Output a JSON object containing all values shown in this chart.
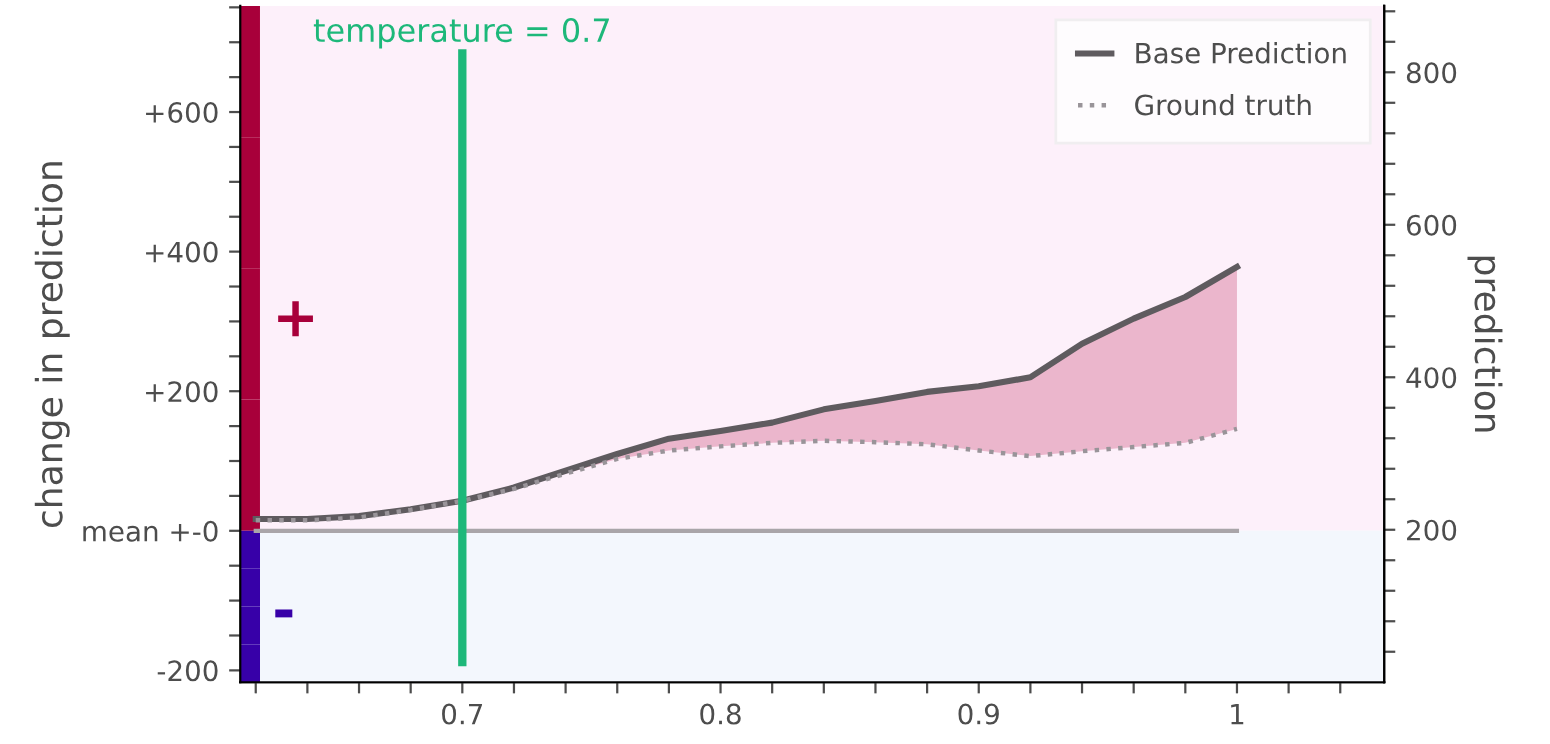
{
  "chart_data": {
    "type": "line",
    "xlabel": null,
    "ylabel": "change in prediction",
    "y2label": "prediction",
    "x": [
      0.62,
      0.64,
      0.66,
      0.68,
      0.7,
      0.72,
      0.74,
      0.76,
      0.78,
      0.8,
      0.82,
      0.84,
      0.86,
      0.88,
      0.9,
      0.92,
      0.94,
      0.96,
      0.98,
      1.0
    ],
    "series": [
      {
        "name": "Base Prediction",
        "color": "#5f5b5f",
        "line_style": "solid",
        "values": [
          17,
          17,
          21,
          31,
          43,
          62,
          86,
          110,
          132,
          143,
          155,
          174,
          186,
          199,
          207,
          220,
          268,
          304,
          335,
          378
        ],
        "lower": [
          15,
          15,
          19,
          30,
          43,
          60,
          82,
          103,
          115,
          121,
          126,
          129,
          127,
          124,
          115,
          107,
          114,
          120,
          126,
          146
        ],
        "upper": [
          17,
          17,
          21,
          31,
          43,
          62,
          86,
          110,
          132,
          143,
          155,
          174,
          186,
          199,
          207,
          220,
          268,
          304,
          335,
          378
        ]
      },
      {
        "name": "Ground truth",
        "color": "#999499",
        "line_style": "dotted",
        "values": [
          15,
          15,
          19,
          30,
          43,
          60,
          82,
          103,
          115,
          121,
          126,
          129,
          127,
          124,
          115,
          107,
          114,
          120,
          126,
          146
        ]
      }
    ],
    "xlim": [
      0.614,
      1.057
    ],
    "xticks": [
      {
        "value": 0.62,
        "label": null
      },
      {
        "value": 0.64,
        "label": null
      },
      {
        "value": 0.66,
        "label": null
      },
      {
        "value": 0.68,
        "label": null
      },
      {
        "value": 0.7,
        "label": "0.7"
      },
      {
        "value": 0.72,
        "label": null
      },
      {
        "value": 0.74,
        "label": null
      },
      {
        "value": 0.76,
        "label": null
      },
      {
        "value": 0.78,
        "label": null
      },
      {
        "value": 0.8,
        "label": "0.8"
      },
      {
        "value": 0.82,
        "label": null
      },
      {
        "value": 0.84,
        "label": null
      },
      {
        "value": 0.86,
        "label": null
      },
      {
        "value": 0.88,
        "label": null
      },
      {
        "value": 0.9,
        "label": "0.9"
      },
      {
        "value": 0.92,
        "label": null
      },
      {
        "value": 0.94,
        "label": null
      },
      {
        "value": 0.96,
        "label": null
      },
      {
        "value": 0.98,
        "label": null
      },
      {
        "value": 1.0,
        "label": "1"
      },
      {
        "value": 1.02,
        "label": null
      },
      {
        "value": 1.04,
        "label": null
      }
    ],
    "ylim": [
      -217,
      752
    ],
    "yticks": [
      {
        "value": -200,
        "label": "-200"
      },
      {
        "value": -150,
        "label": null
      },
      {
        "value": -100,
        "label": null
      },
      {
        "value": -50,
        "label": null
      },
      {
        "value": 0,
        "label": "mean +-0"
      },
      {
        "value": 50,
        "label": null
      },
      {
        "value": 100,
        "label": null
      },
      {
        "value": 150,
        "label": null
      },
      {
        "value": 200,
        "label": "+200"
      },
      {
        "value": 250,
        "label": null
      },
      {
        "value": 300,
        "label": null
      },
      {
        "value": 350,
        "label": null
      },
      {
        "value": 400,
        "label": "+400"
      },
      {
        "value": 450,
        "label": null
      },
      {
        "value": 500,
        "label": null
      },
      {
        "value": 550,
        "label": null
      },
      {
        "value": 600,
        "label": "+600"
      },
      {
        "value": 650,
        "label": null
      },
      {
        "value": 700,
        "label": null
      },
      {
        "value": 750,
        "label": null
      }
    ],
    "y2lim": [
      0,
      887
    ],
    "y2ticks": [
      {
        "value": 40,
        "label": null
      },
      {
        "value": 80,
        "label": null
      },
      {
        "value": 120,
        "label": null
      },
      {
        "value": 160,
        "label": null
      },
      200,
      {
        "value": 240,
        "label": null
      },
      {
        "value": 280,
        "label": null
      },
      {
        "value": 320,
        "label": null
      },
      {
        "value": 360,
        "label": null
      },
      400,
      {
        "value": 440,
        "label": null
      },
      {
        "value": 480,
        "label": null
      },
      {
        "value": 520,
        "label": null
      },
      {
        "value": 560,
        "label": null
      },
      600,
      {
        "value": 640,
        "label": null
      },
      {
        "value": 680,
        "label": null
      },
      {
        "value": 720,
        "label": null
      },
      {
        "value": 760,
        "label": null
      },
      800,
      {
        "value": 840,
        "label": null
      },
      {
        "value": 880,
        "label": null
      }
    ],
    "ref_lines": [
      {
        "axis": "y",
        "value": 0,
        "label": null,
        "color": "#a9a5a9",
        "line_style": "solid"
      },
      {
        "axis": "x",
        "value": 0.7,
        "label": "temperature = 0.7",
        "color": "#1db87a",
        "line_style": "solid"
      }
    ],
    "bands": [
      {
        "axis": "y",
        "from": 0,
        "to": 752,
        "label": "+",
        "color": "#fdf0fa"
      },
      {
        "axis": "y",
        "from": -217,
        "to": 0,
        "label": "-",
        "color": "#f3f7fd"
      }
    ],
    "legend": "top right",
    "grid": false
  }
}
